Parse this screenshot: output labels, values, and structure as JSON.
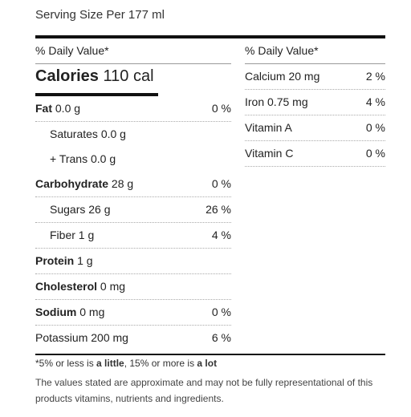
{
  "serving": "Serving Size Per 177 ml",
  "left": {
    "header": "% Daily Value*",
    "calories_label": "Calories",
    "calories_value": "110 cal",
    "rows": [
      {
        "bold": "Fat",
        "rest": " 0.0 g",
        "pct": "0 %"
      },
      {
        "bold": "",
        "rest": "Saturates 0.0 g",
        "pct": ""
      },
      {
        "bold": "",
        "rest": "+ Trans 0.0 g",
        "pct": ""
      },
      {
        "bold": "Carbohydrate",
        "rest": " 28 g",
        "pct": "0 %"
      },
      {
        "bold": "",
        "rest": "Sugars 26 g",
        "pct": "26 %"
      },
      {
        "bold": "",
        "rest": "Fiber 1 g",
        "pct": "4 %"
      },
      {
        "bold": "Protein",
        "rest": " 1 g",
        "pct": ""
      },
      {
        "bold": "Cholesterol",
        "rest": " 0 mg",
        "pct": ""
      },
      {
        "bold": "Sodium",
        "rest": " 0 mg",
        "pct": "0 %"
      },
      {
        "bold": "",
        "rest": "Potassium 200 mg",
        "pct": "6 %"
      }
    ]
  },
  "right": {
    "header": "% Daily Value*",
    "rows": [
      {
        "label": "Calcium 20 mg",
        "pct": "2 %"
      },
      {
        "label": "Iron 0.75 mg",
        "pct": "4 %"
      },
      {
        "label": "Vitamin A",
        "pct": "0 %"
      },
      {
        "label": "Vitamin C",
        "pct": "0 %"
      }
    ]
  },
  "footnote": {
    "part1": "*5% or less is ",
    "little": "a little",
    "part2": ", 15% or more is ",
    "lot": "a lot"
  },
  "disclaimer": "The values stated are approximate and may not be fully representational of this products vitamins, nutrients and ingredients."
}
